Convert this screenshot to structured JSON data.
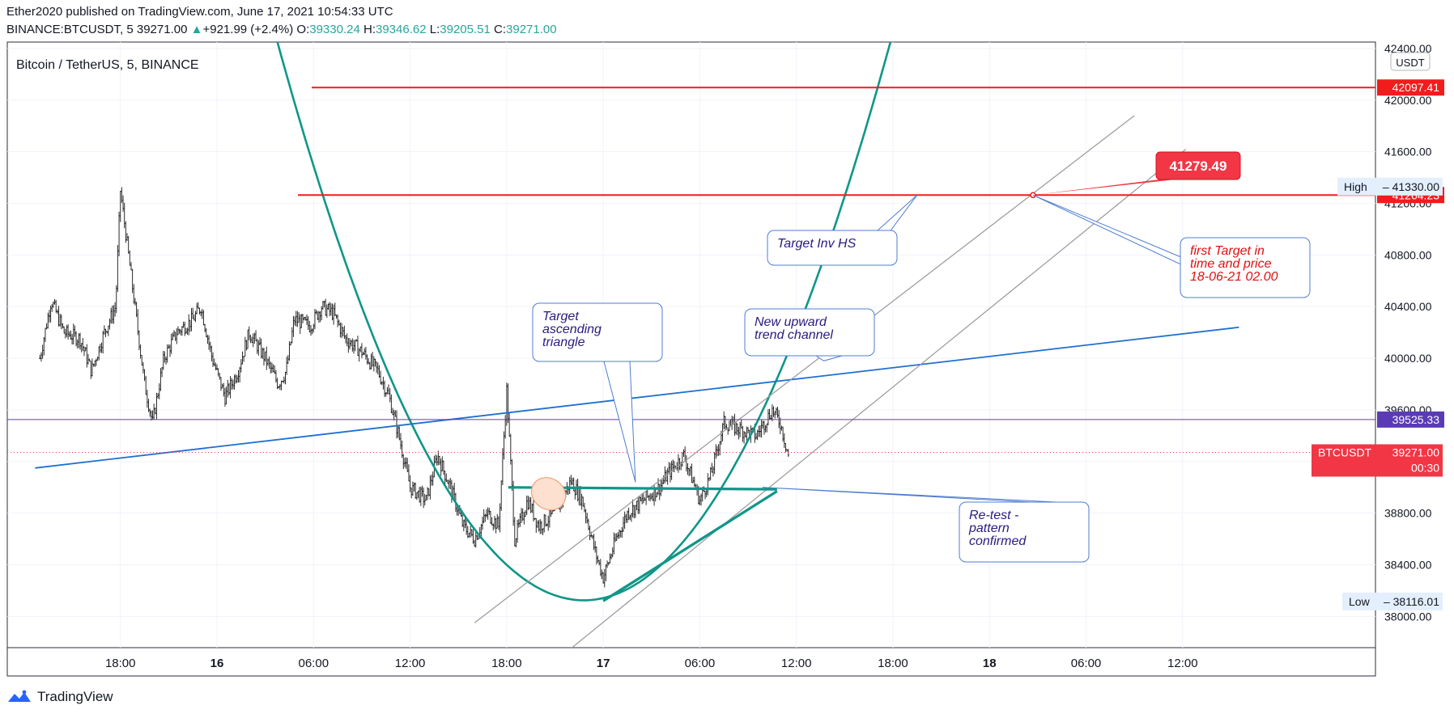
{
  "header": {
    "publish_line": "Ether2020 published on TradingView.com, June 17, 2021 10:54:33 UTC",
    "symbol": "BINANCE:BTCUSDT, 5",
    "last": "39271.00",
    "change_arrow": "▲",
    "change": "+921.99 (+2.4%)",
    "o_label": "O:",
    "o": "39330.24",
    "h_label": "H:",
    "h": "39346.62",
    "l_label": "L:",
    "l": "39205.51",
    "c_label": "C:",
    "c": "39271.00"
  },
  "chart_title": "Bitcoin / TetherUS, 5, BINANCE",
  "footer": {
    "brand": "TradingView"
  },
  "colors": {
    "up": "#26a69a",
    "teal": "#0f9688",
    "red_line": "#f21c1c",
    "blue_line": "#1e6fd0",
    "purple_line": "#5b3bb5",
    "gray_channel": "#9e9e9e",
    "callout_text": "#2a1a80",
    "price_tag": "#f23645"
  },
  "chart_data": {
    "type": "candlestick",
    "symbol": "BTCUSDT",
    "currency_label": "USDT",
    "y_ticks": [
      38000,
      38400,
      38800,
      39200,
      39600,
      40000,
      40400,
      40800,
      41200,
      41600,
      42000,
      42400
    ],
    "y_tick_labels": [
      "38000.00",
      "38400.00",
      "38800.00",
      "39200.00",
      "39600.00",
      "40000.00",
      "40400.00",
      "40800.00",
      "41200.00",
      "41600.00",
      "42000.00",
      "42400.00"
    ],
    "x_ticks": [
      {
        "label": "18:00",
        "hours": -6,
        "bold": false
      },
      {
        "label": "16",
        "hours": 0,
        "bold": true
      },
      {
        "label": "06:00",
        "hours": 6,
        "bold": false
      },
      {
        "label": "12:00",
        "hours": 12,
        "bold": false
      },
      {
        "label": "18:00",
        "hours": 18,
        "bold": false
      },
      {
        "label": "17",
        "hours": 24,
        "bold": true
      },
      {
        "label": "06:00",
        "hours": 30,
        "bold": false
      },
      {
        "label": "12:00",
        "hours": 36,
        "bold": false
      },
      {
        "label": "18:00",
        "hours": 42,
        "bold": false
      },
      {
        "label": "18",
        "hours": 48,
        "bold": true
      },
      {
        "label": "06:00",
        "hours": 54,
        "bold": false
      },
      {
        "label": "12:00",
        "hours": 60,
        "bold": false
      }
    ],
    "price_path": [
      [
        -11.0,
        40000
      ],
      [
        -10.3,
        40450
      ],
      [
        -9.5,
        40200
      ],
      [
        -8.5,
        40150
      ],
      [
        -7.8,
        39900
      ],
      [
        -7.0,
        40200
      ],
      [
        -6.3,
        40400
      ],
      [
        -6.0,
        41300
      ],
      [
        -5.5,
        40800
      ],
      [
        -5.0,
        40300
      ],
      [
        -4.5,
        39800
      ],
      [
        -4.0,
        39500
      ],
      [
        -3.3,
        40000
      ],
      [
        -2.5,
        40200
      ],
      [
        -1.5,
        40300
      ],
      [
        -1.0,
        40400
      ],
      [
        -0.3,
        40000
      ],
      [
        0.5,
        39700
      ],
      [
        1.3,
        39900
      ],
      [
        2.0,
        40200
      ],
      [
        3.0,
        40000
      ],
      [
        3.8,
        39800
      ],
      [
        4.3,
        39900
      ],
      [
        4.8,
        40300
      ],
      [
        5.8,
        40250
      ],
      [
        6.5,
        40400
      ],
      [
        7.2,
        40350
      ],
      [
        8.0,
        40150
      ],
      [
        9.0,
        40050
      ],
      [
        10.0,
        39900
      ],
      [
        10.7,
        39700
      ],
      [
        11.3,
        39400
      ],
      [
        12.0,
        39000
      ],
      [
        13.0,
        38900
      ],
      [
        13.7,
        39250
      ],
      [
        14.5,
        39000
      ],
      [
        15.3,
        38700
      ],
      [
        16.0,
        38600
      ],
      [
        16.8,
        38800
      ],
      [
        17.5,
        38700
      ],
      [
        18.0,
        39750
      ],
      [
        18.5,
        38600
      ],
      [
        19.3,
        38900
      ],
      [
        20.0,
        38700
      ],
      [
        21.0,
        38800
      ],
      [
        22.0,
        39050
      ],
      [
        22.7,
        38900
      ],
      [
        23.5,
        38500
      ],
      [
        24.0,
        38300
      ],
      [
        24.8,
        38600
      ],
      [
        25.5,
        38800
      ],
      [
        26.5,
        38900
      ],
      [
        27.5,
        39000
      ],
      [
        28.0,
        39100
      ],
      [
        29.0,
        39250
      ],
      [
        30.0,
        38900
      ],
      [
        30.7,
        39100
      ],
      [
        31.5,
        39500
      ],
      [
        32.5,
        39450
      ],
      [
        33.5,
        39400
      ],
      [
        34.5,
        39600
      ],
      [
        35.0,
        39500
      ],
      [
        35.5,
        39250
      ]
    ],
    "price_range": {
      "min": 38116.01,
      "max": 41330.0
    },
    "horizontal_lines": [
      {
        "value": 42097.41,
        "label": "42097.41",
        "color": "#f21c1c"
      },
      {
        "value": 41264.23,
        "label": "41264.23",
        "color": "#f21c1c"
      },
      {
        "value": 39525.33,
        "label": "39525.33",
        "color": "#5b3bb5"
      }
    ],
    "current_price": {
      "symbol": "BTCUSDT",
      "value": 39271.0,
      "label": "39271.00",
      "countdown": "00:30"
    },
    "high_marker": {
      "text": "High",
      "label": "41330.00",
      "value": 41330.0
    },
    "low_marker": {
      "text": "Low",
      "label": "38116.01",
      "value": 38116.01
    },
    "target_price": {
      "label": "41279.49",
      "value": 41279.49,
      "hours": 50.7
    },
    "annotations": [
      {
        "id": "target-inv-hs",
        "lines": [
          "Target Inv HS"
        ],
        "color": "#2a1a80",
        "anchor": {
          "hours": 43.5,
          "value": 41264
        }
      },
      {
        "id": "first-target",
        "lines": [
          "first Target in",
          "time and price",
          "18-06-21 02.00"
        ],
        "color": "#e01010",
        "anchor": {
          "hours": 50.7,
          "value": 41264
        }
      },
      {
        "id": "target-ascending-triangle",
        "lines": [
          "Target",
          "ascending",
          "triangle"
        ],
        "color": "#2a1a80",
        "anchor": {
          "hours": 26.0,
          "value": 39040
        }
      },
      {
        "id": "new-upward-channel",
        "lines": [
          "New upward",
          "trend channel"
        ],
        "color": "#2a1a80",
        "anchor": {
          "hours": 37.7,
          "value": 39980
        }
      },
      {
        "id": "retest",
        "lines": [
          "Re-test -",
          "pattern",
          "confirmed"
        ],
        "color": "#2a1a80",
        "anchor": {
          "hours": 33.9,
          "value": 39000
        }
      }
    ],
    "trend_lines": [
      {
        "id": "blue-trend",
        "from": {
          "hours": -11.3,
          "value": 39150
        },
        "to": {
          "hours": 63.5,
          "value": 40240
        },
        "color": "#1e6fd0"
      },
      {
        "id": "channel-upper",
        "from": {
          "hours": 16.0,
          "value": 37950
        },
        "to": {
          "hours": 57.0,
          "value": 41880
        },
        "color": "#9e9e9e"
      },
      {
        "id": "channel-lower",
        "from": {
          "hours": 20.0,
          "value": 37550
        },
        "to": {
          "hours": 60.2,
          "value": 41620
        },
        "color": "#9e9e9e"
      },
      {
        "id": "triangle-top",
        "from": {
          "hours": 18.1,
          "value": 39000
        },
        "to": {
          "hours": 34.8,
          "value": 38985
        },
        "color": "#0f9688"
      },
      {
        "id": "triangle-bottom",
        "from": {
          "hours": 24.0,
          "value": 38120
        },
        "to": {
          "hours": 34.8,
          "value": 38970
        },
        "color": "#0f9688"
      }
    ],
    "parabola": {
      "vertex_hours": 22.8,
      "vertex_value": 38125,
      "passes": {
        "hours": 3.0,
        "value": 42800
      },
      "end_hours": 56.5,
      "color": "#0f9688"
    },
    "grid": true
  }
}
